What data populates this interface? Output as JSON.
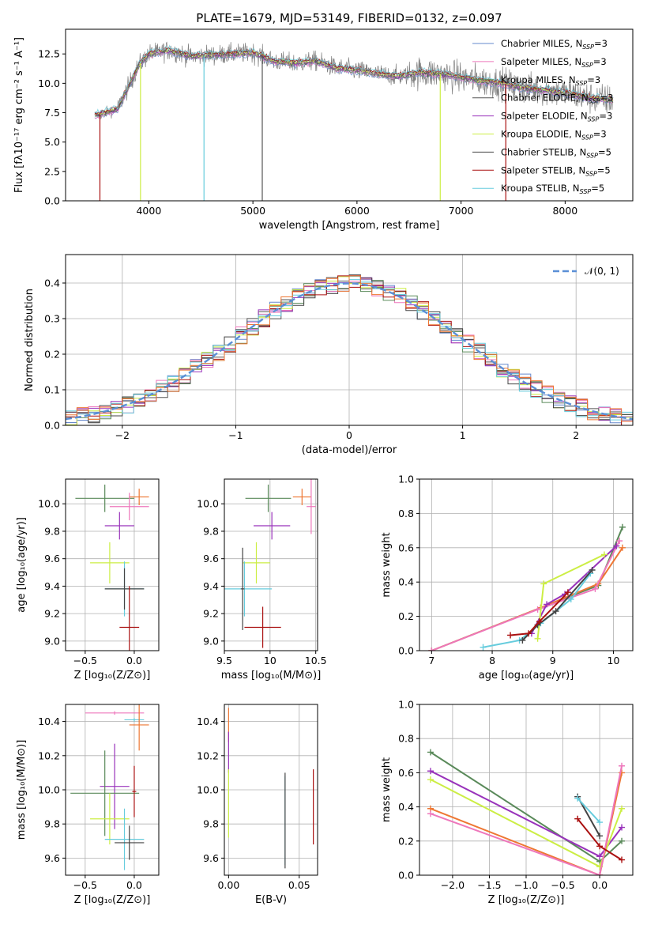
{
  "figure_title": "PLATE=1679, MJD=53149, FIBERID=0132, z=0.097",
  "colors": {
    "chabrier_miles": "#6688cc",
    "salpeter_miles": "#ee77bb",
    "kroupa_miles": "#5a8a5a",
    "chabrier_elodie": "#555555",
    "salpeter_elodie": "#9933bb",
    "kroupa_elodie": "#ccee44",
    "chabrier_stelib": "#444444",
    "salpeter_stelib": "#aa1111",
    "kroupa_stelib": "#66ccdd",
    "orange": "#ee7733",
    "gaussian": "#5b8fd6",
    "grid": "#b0b0b0",
    "data": "#808080"
  },
  "chart_data": [
    {
      "id": "spectrum",
      "type": "line",
      "title": "PLATE=1679, MJD=53149, FIBERID=0132, z=0.097",
      "xlabel": "wavelength [Angstrom, rest frame]",
      "ylabel": "Flux [fλ10⁻¹⁷ erg cm⁻² s⁻¹ A⁻¹]",
      "xlim": [
        3200,
        8650
      ],
      "ylim": [
        0,
        14.6
      ],
      "xticks": [
        4000,
        5000,
        6000,
        7000,
        8000
      ],
      "yticks": [
        0.0,
        2.5,
        5.0,
        7.5,
        10.0,
        12.5
      ],
      "legend_position": "top-right",
      "legend": [
        "Chabrier MILES, N_SSP=3",
        "Salpeter MILES, N_SSP=3",
        "Kroupa MILES, N_SSP=3",
        "Chabrier ELODIE, N_SSP=3",
        "Salpeter ELODIE, N_SSP=3",
        "Kroupa ELODIE, N_SSP=3",
        "Chabrier STELIB, N_SSP=5",
        "Salpeter STELIB, N_SSP=5",
        "Kroupa STELIB, N_SSP=5"
      ],
      "continuum": {
        "x": [
          3500,
          3700,
          3900,
          4000,
          4200,
          4400,
          4600,
          4800,
          5000,
          5200,
          5400,
          5600,
          5800,
          6000,
          6200,
          6400,
          6600,
          6800,
          7000,
          7200,
          7400,
          7600,
          7800,
          8000,
          8200,
          8400
        ],
        "y": [
          7.3,
          7.8,
          11.5,
          12.5,
          12.8,
          12.3,
          12.4,
          12.5,
          12.6,
          11.9,
          11.7,
          11.9,
          11.3,
          11.1,
          10.8,
          10.6,
          10.9,
          10.8,
          10.5,
          10.2,
          10.0,
          9.6,
          9.4,
          9.2,
          8.8,
          8.6
        ]
      },
      "dropouts": [
        {
          "x": 3530,
          "series": "salpeter_stelib"
        },
        {
          "x": 3920,
          "series": "kroupa_elodie"
        },
        {
          "x": 4530,
          "series": "kroupa_stelib"
        },
        {
          "x": 5090,
          "series": "chabrier_elodie"
        },
        {
          "x": 6800,
          "series": "kroupa_elodie"
        },
        {
          "x": 7430,
          "series": "salpeter_stelib"
        }
      ]
    },
    {
      "id": "residuals",
      "type": "histogram",
      "xlabel": "(data-model)/error",
      "ylabel": "Normed distribution",
      "xlim": [
        -2.5,
        2.5
      ],
      "ylim": [
        0,
        0.48
      ],
      "xticks": [
        -2,
        -1,
        0,
        1,
        2
      ],
      "yticks": [
        0.0,
        0.1,
        0.2,
        0.3,
        0.4
      ],
      "legend_position": "top-right",
      "legend": [
        "𝒩(0, 1)"
      ],
      "bin_width": 0.1,
      "gaussian": {
        "mean": 0,
        "sigma": 1
      }
    },
    {
      "id": "age_vs_Z",
      "type": "errorbar",
      "xlabel": "Z [log₁₀(Z/Z⊙)]",
      "ylabel": "age  [log₁₀(age/yr)]",
      "xlim": [
        -0.7,
        0.25
      ],
      "ylim": [
        8.93,
        10.18
      ],
      "xticks": [
        -0.5,
        0.0
      ],
      "xtick_labels": [
        "−0.5",
        "0.0"
      ],
      "yticks": [
        9.0,
        9.2,
        9.4,
        9.6,
        9.8,
        10.0
      ],
      "points": [
        {
          "series": "kroupa_miles",
          "x": -0.3,
          "xerr": 0.3,
          "y": 10.04,
          "yerr": 0.1
        },
        {
          "series": "orange",
          "x": 0.05,
          "xerr": 0.1,
          "y": 10.05,
          "yerr": 0.06
        },
        {
          "series": "salpeter_miles",
          "x": -0.05,
          "xerr": 0.2,
          "y": 9.98,
          "yerr": 0.1
        },
        {
          "series": "salpeter_elodie",
          "x": -0.15,
          "xerr": 0.15,
          "y": 9.84,
          "yerr": 0.1
        },
        {
          "series": "kroupa_elodie",
          "x": -0.25,
          "xerr": 0.2,
          "y": 9.57,
          "yerr": 0.15
        },
        {
          "series": "kroupa_stelib",
          "x": -0.1,
          "xerr": 0.2,
          "y": 9.38,
          "yerr": 0.2
        },
        {
          "series": "chabrier_stelib",
          "x": -0.1,
          "xerr": 0.2,
          "y": 9.38,
          "yerr": 0.15
        },
        {
          "series": "salpeter_stelib",
          "x": -0.05,
          "xerr": 0.1,
          "y": 9.1,
          "yerr": 0.3
        }
      ]
    },
    {
      "id": "age_vs_mass",
      "type": "errorbar",
      "xlabel": "mass [log₁₀(M/M⊙)]",
      "ylabel": "",
      "xlim": [
        9.5,
        10.52
      ],
      "ylim": [
        8.93,
        10.18
      ],
      "xticks": [
        9.5,
        10.0,
        10.5
      ],
      "yticks": [
        9.0,
        9.2,
        9.4,
        9.6,
        9.8,
        10.0
      ],
      "points": [
        {
          "series": "kroupa_miles",
          "x": 9.98,
          "xerr": 0.25,
          "y": 10.04,
          "yerr": 0.1
        },
        {
          "series": "orange",
          "x": 10.35,
          "xerr": 0.1,
          "y": 10.05,
          "yerr": 0.06
        },
        {
          "series": "salpeter_miles",
          "x": 10.45,
          "xerr": 0.05,
          "y": 9.98,
          "yerr": 0.2
        },
        {
          "series": "salpeter_elodie",
          "x": 10.02,
          "xerr": 0.2,
          "y": 9.84,
          "yerr": 0.1
        },
        {
          "series": "kroupa_elodie",
          "x": 9.85,
          "xerr": 0.15,
          "y": 9.57,
          "yerr": 0.15
        },
        {
          "series": "kroupa_stelib",
          "x": 9.72,
          "xerr": 0.3,
          "y": 9.38,
          "yerr": 0.2
        },
        {
          "series": "chabrier_stelib",
          "x": 9.7,
          "xerr": 0.02,
          "y": 9.38,
          "yerr": 0.3
        },
        {
          "series": "salpeter_stelib",
          "x": 9.92,
          "xerr": 0.2,
          "y": 9.1,
          "yerr": 0.15
        }
      ]
    },
    {
      "id": "weight_vs_age",
      "type": "line",
      "xlabel": "age  [log₁₀(age/yr)]",
      "ylabel": "mass weight",
      "xlim": [
        6.8,
        10.32
      ],
      "ylim": [
        0,
        1.0
      ],
      "xticks": [
        7,
        8,
        9,
        10
      ],
      "yticks": [
        0.0,
        0.2,
        0.4,
        0.6,
        0.8,
        1.0
      ],
      "series": [
        {
          "key": "kroupa_miles",
          "x": [
            7.0,
            8.8,
            9.75,
            10.15
          ],
          "y": [
            0.0,
            0.25,
            0.38,
            0.72
          ]
        },
        {
          "key": "orange",
          "x": [
            7.0,
            8.8,
            9.75,
            10.15
          ],
          "y": [
            0.0,
            0.25,
            0.39,
            0.6
          ]
        },
        {
          "key": "salpeter_miles",
          "x": [
            7.0,
            8.75,
            9.7,
            10.1
          ],
          "y": [
            0.0,
            0.24,
            0.36,
            0.64
          ]
        },
        {
          "key": "salpeter_elodie",
          "x": [
            8.65,
            8.9,
            9.2,
            10.05
          ],
          "y": [
            0.1,
            0.27,
            0.33,
            0.61
          ]
        },
        {
          "key": "kroupa_elodie",
          "x": [
            8.75,
            8.85,
            9.85
          ],
          "y": [
            0.07,
            0.39,
            0.56
          ]
        },
        {
          "key": "kroupa_stelib",
          "x": [
            7.85,
            8.45,
            8.8,
            9.3,
            9.62
          ],
          "y": [
            0.02,
            0.06,
            0.16,
            0.3,
            0.45
          ]
        },
        {
          "key": "chabrier_stelib",
          "x": [
            8.5,
            8.75,
            9.05,
            9.65
          ],
          "y": [
            0.06,
            0.15,
            0.23,
            0.47
          ]
        },
        {
          "key": "salpeter_stelib",
          "x": [
            8.3,
            8.6,
            8.78,
            9.25
          ],
          "y": [
            0.09,
            0.1,
            0.17,
            0.34
          ]
        }
      ]
    },
    {
      "id": "mass_vs_Z",
      "type": "errorbar",
      "xlabel": "Z [log₁₀(Z/Z⊙)]",
      "ylabel": "mass [log₁₀(M/M⊙)]",
      "xlim": [
        -0.7,
        0.25
      ],
      "ylim": [
        9.5,
        10.5
      ],
      "xticks": [
        -0.5,
        0.0
      ],
      "xtick_labels": [
        "−0.5",
        "0.0"
      ],
      "yticks": [
        9.6,
        9.8,
        10.0,
        10.2,
        10.4
      ],
      "points": [
        {
          "series": "salpeter_miles",
          "x": -0.2,
          "xerr": 0.3,
          "y": 10.45,
          "yerr": 0.01
        },
        {
          "series": "kroupa_stelib",
          "x": 0.0,
          "xerr": 0.1,
          "y": 10.41,
          "yerr": 0.01
        },
        {
          "series": "orange",
          "x": 0.05,
          "xerr": 0.1,
          "y": 10.38,
          "yerr": 0.15
        },
        {
          "series": "salpeter_elodie",
          "x": -0.2,
          "xerr": 0.15,
          "y": 10.02,
          "yerr": 0.25
        },
        {
          "series": "kroupa_miles",
          "x": -0.3,
          "xerr": 0.35,
          "y": 9.98,
          "yerr": 0.25
        },
        {
          "series": "kroupa_elodie",
          "x": -0.25,
          "xerr": 0.2,
          "y": 9.83,
          "yerr": 0.15
        },
        {
          "series": "kroupa_stelib",
          "x": -0.1,
          "xerr": 0.2,
          "y": 9.71,
          "yerr": 0.18
        },
        {
          "series": "chabrier_stelib",
          "x": -0.05,
          "xerr": 0.15,
          "y": 9.69,
          "yerr": 0.1
        },
        {
          "series": "salpeter_stelib",
          "x": 0.0,
          "xerr": 0.02,
          "y": 9.99,
          "yerr": 0.15
        }
      ]
    },
    {
      "id": "mass_vs_ebv",
      "type": "errorbar",
      "xlabel": "E(B-V)",
      "ylabel": "",
      "xlim": [
        -0.003,
        0.063
      ],
      "ylim": [
        9.5,
        10.5
      ],
      "xticks": [
        0.0,
        0.05
      ],
      "xtick_labels": [
        "0.00",
        "0.05"
      ],
      "yticks": [
        9.6,
        9.8,
        10.0,
        10.2,
        10.4
      ],
      "points": [
        {
          "series": "orange",
          "x": 0.0,
          "xerr": 0,
          "y": 10.38,
          "yerr": 0.1
        },
        {
          "series": "salpeter_elodie",
          "x": 0.0,
          "xerr": 0,
          "y": 10.22,
          "yerr": 0.12
        },
        {
          "series": "kroupa_elodie",
          "x": 0.0,
          "xerr": 0,
          "y": 9.92,
          "yerr": 0.2
        },
        {
          "series": "kroupa_stelib",
          "x": 0.04,
          "xerr": 0,
          "y": 9.82,
          "yerr": 0.26
        },
        {
          "series": "chabrier_stelib",
          "x": 0.04,
          "xerr": 0,
          "y": 9.82,
          "yerr": 0.28
        },
        {
          "series": "salpeter_stelib",
          "x": 0.06,
          "xerr": 0,
          "y": 9.9,
          "yerr": 0.22
        }
      ]
    },
    {
      "id": "weight_vs_Z",
      "type": "line",
      "xlabel": "Z [log₁₀(Z/Z⊙)]",
      "ylabel": "mass weight",
      "xlim": [
        -2.45,
        0.45
      ],
      "ylim": [
        0,
        1.0
      ],
      "xticks": [
        -2.0,
        -1.5,
        -1.0,
        -0.5,
        0.0
      ],
      "xtick_labels": [
        "−2.0",
        "−1.5",
        "−1.0",
        "−0.5",
        "0.0"
      ],
      "yticks": [
        0.0,
        0.2,
        0.4,
        0.6,
        0.8,
        1.0
      ],
      "series": [
        {
          "key": "kroupa_miles",
          "x": [
            -2.3,
            0.0,
            0.3
          ],
          "y": [
            0.72,
            0.08,
            0.2
          ]
        },
        {
          "key": "salpeter_elodie",
          "x": [
            -2.3,
            0.0,
            0.3
          ],
          "y": [
            0.61,
            0.11,
            0.28
          ]
        },
        {
          "key": "kroupa_elodie",
          "x": [
            -2.3,
            0.0,
            0.3
          ],
          "y": [
            0.56,
            0.05,
            0.39
          ]
        },
        {
          "key": "orange",
          "x": [
            -2.3,
            0.0,
            0.3
          ],
          "y": [
            0.39,
            0.0,
            0.6
          ]
        },
        {
          "key": "salpeter_miles",
          "x": [
            -2.3,
            0.0,
            0.3
          ],
          "y": [
            0.36,
            0.0,
            0.64
          ]
        },
        {
          "key": "chabrier_stelib",
          "x": [
            -0.3,
            0.0
          ],
          "y": [
            0.46,
            0.23
          ]
        },
        {
          "key": "kroupa_stelib",
          "x": [
            -0.3,
            0.0
          ],
          "y": [
            0.45,
            0.31
          ]
        },
        {
          "key": "salpeter_stelib",
          "x": [
            -0.3,
            0.0,
            0.3
          ],
          "y": [
            0.33,
            0.17,
            0.09
          ]
        }
      ]
    }
  ]
}
